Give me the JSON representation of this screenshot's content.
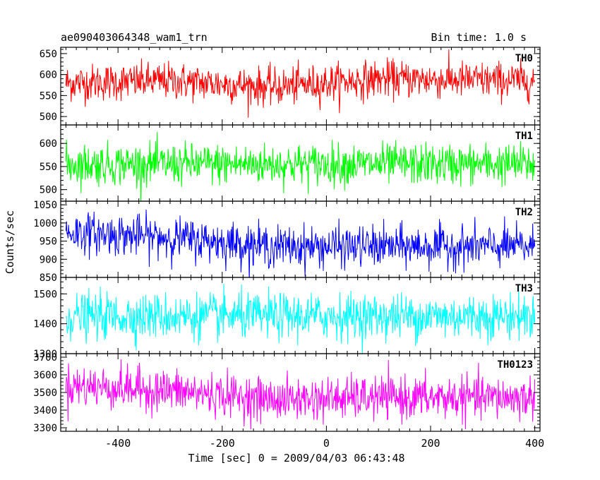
{
  "header": {
    "object_name": "ae090403064348_wam1_trn",
    "bin_time": "Bin time: 1.0 s"
  },
  "axes": {
    "ylabel": "Counts/sec",
    "xlabel": "Time [sec] 0 = 2009/04/03 06:43:48"
  },
  "chart_data": {
    "type": "line",
    "x_range": [
      -510,
      410
    ],
    "x_ticks": [
      -400,
      -200,
      0,
      200,
      400
    ],
    "x_data_range": [
      -500,
      400
    ],
    "bin_seconds": 1.0,
    "panels": [
      {
        "name": "TH0",
        "color": "#ff0000",
        "ylim": [
          480,
          665
        ],
        "yticks": [
          500,
          550,
          600,
          650
        ],
        "mean_profile": [
          [
            -500,
            580
          ],
          [
            -300,
            585
          ],
          [
            -100,
            570
          ],
          [
            100,
            590
          ],
          [
            400,
            585
          ]
        ],
        "scatter": 22
      },
      {
        "name": "TH1",
        "color": "#00ff00",
        "ylim": [
          475,
          640
        ],
        "yticks": [
          500,
          550,
          600
        ],
        "mean_profile": [
          [
            -500,
            555
          ],
          [
            0,
            555
          ],
          [
            400,
            555
          ]
        ],
        "scatter": 22
      },
      {
        "name": "TH2",
        "color": "#0000ff",
        "ylim": [
          850,
          1060
        ],
        "yticks": [
          850,
          900,
          950,
          1000,
          1050
        ],
        "mean_profile": [
          [
            -500,
            975
          ],
          [
            -300,
            960
          ],
          [
            -100,
            935
          ],
          [
            100,
            935
          ],
          [
            400,
            935
          ]
        ],
        "scatter": 28
      },
      {
        "name": "TH3",
        "color": "#00ffff",
        "ylim": [
          1300,
          1555
        ],
        "yticks": [
          1300,
          1400,
          1500
        ],
        "mean_profile": [
          [
            -500,
            1425
          ],
          [
            0,
            1425
          ],
          [
            400,
            1425
          ]
        ],
        "scatter": 38
      },
      {
        "name": "TH0123",
        "color": "#ff00ff",
        "ylim": [
          3280,
          3720
        ],
        "yticks": [
          3300,
          3400,
          3500,
          3600,
          3700
        ],
        "mean_profile": [
          [
            -500,
            3540
          ],
          [
            -300,
            3510
          ],
          [
            -100,
            3460
          ],
          [
            100,
            3470
          ],
          [
            400,
            3470
          ]
        ],
        "scatter": 60
      }
    ]
  }
}
